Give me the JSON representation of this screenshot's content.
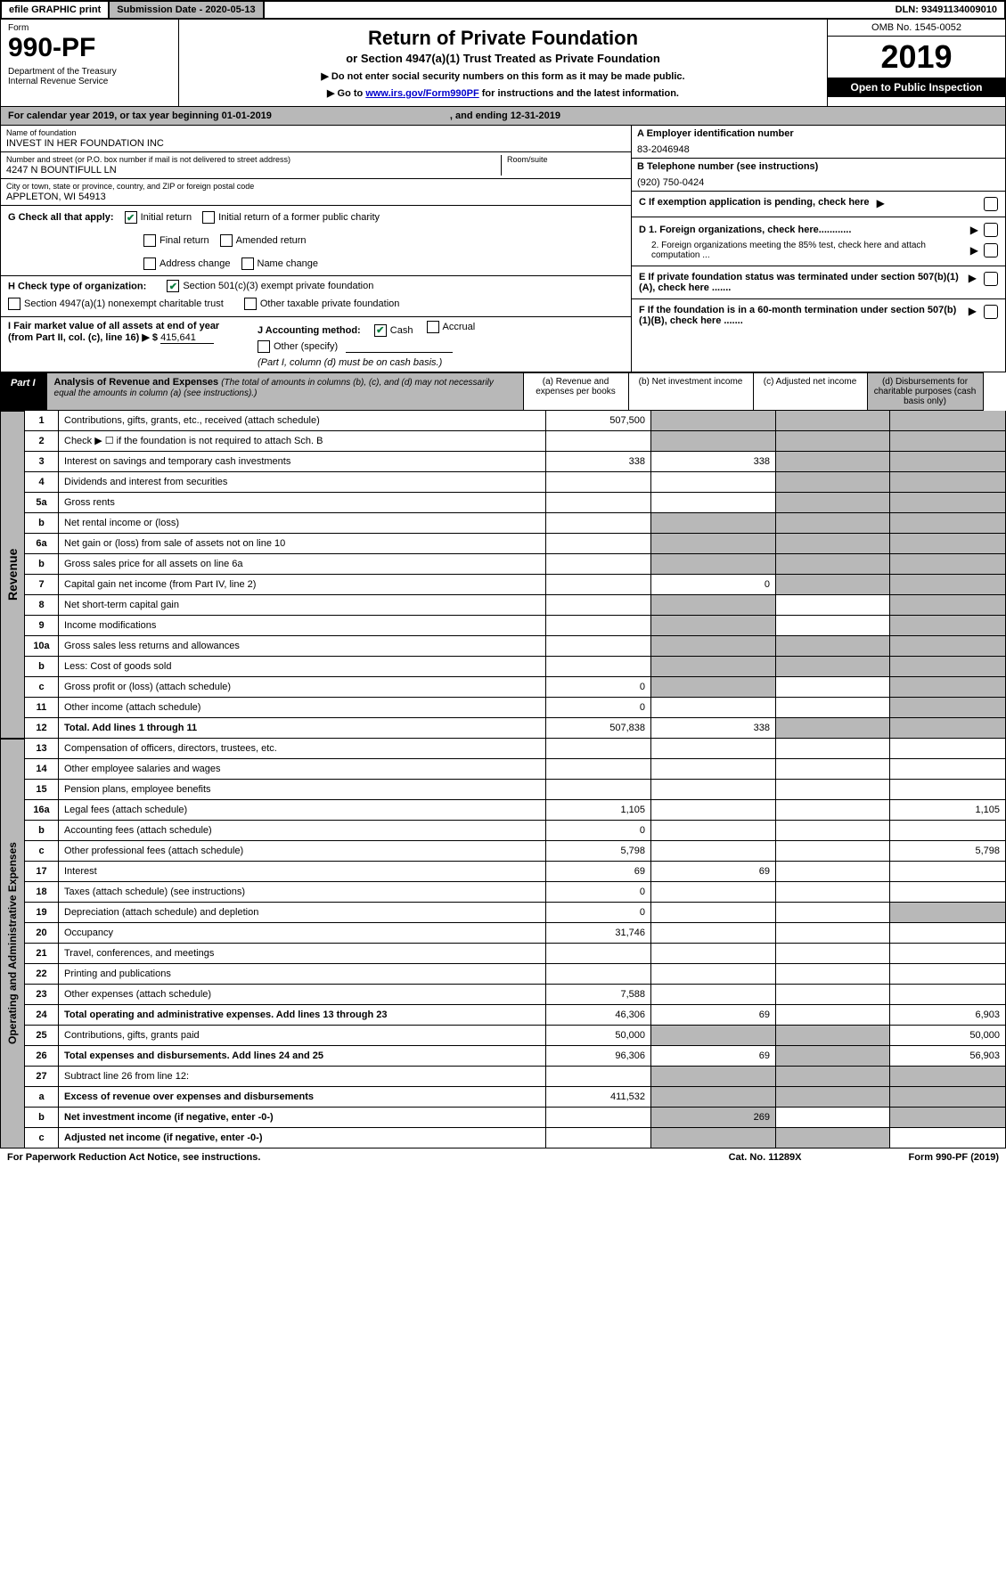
{
  "topbar": {
    "efile": "efile GRAPHIC print",
    "submission": "Submission Date - 2020-05-13",
    "dln": "DLN: 93491134009010"
  },
  "header": {
    "form_label": "Form",
    "form_number": "990-PF",
    "dept": "Department of the Treasury\nInternal Revenue Service",
    "title": "Return of Private Foundation",
    "subtitle": "or Section 4947(a)(1) Trust Treated as Private Foundation",
    "note1": "▶ Do not enter social security numbers on this form as it may be made public.",
    "note2_pre": "▶ Go to ",
    "note2_link": "www.irs.gov/Form990PF",
    "note2_post": " for instructions and the latest information.",
    "omb": "OMB No. 1545-0052",
    "year": "2019",
    "open": "Open to Public Inspection"
  },
  "cal_year": {
    "text": "For calendar year 2019, or tax year beginning 01-01-2019",
    "ending": ", and ending 12-31-2019"
  },
  "name": {
    "label": "Name of foundation",
    "value": "INVEST IN HER FOUNDATION INC"
  },
  "address": {
    "label": "Number and street (or P.O. box number if mail is not delivered to street address)",
    "value": "4247 N BOUNTIFULL LN",
    "room_label": "Room/suite"
  },
  "city": {
    "label": "City or town, state or province, country, and ZIP or foreign postal code",
    "value": "APPLETON, WI  54913"
  },
  "ein": {
    "label": "A Employer identification number",
    "value": "83-2046948"
  },
  "phone": {
    "label": "B Telephone number (see instructions)",
    "value": "(920) 750-0424"
  },
  "c_text": "C If exemption application is pending, check here",
  "d1": "D 1. Foreign organizations, check here............",
  "d2": "2. Foreign organizations meeting the 85% test, check here and attach computation ...",
  "e_text": "E  If private foundation status was terminated under section 507(b)(1)(A), check here .......",
  "f_text": "F  If the foundation is in a 60-month termination under section 507(b)(1)(B), check here .......",
  "g": {
    "label": "G Check all that apply:",
    "initial": "Initial return",
    "initial_former": "Initial return of a former public charity",
    "final": "Final return",
    "amended": "Amended return",
    "address": "Address change",
    "name": "Name change"
  },
  "h": {
    "label": "H Check type of organization:",
    "s501": "Section 501(c)(3) exempt private foundation",
    "s4947": "Section 4947(a)(1) nonexempt charitable trust",
    "other_tax": "Other taxable private foundation"
  },
  "i": {
    "label": "I Fair market value of all assets at end of year (from Part II, col. (c), line 16) ▶ $",
    "value": "415,641"
  },
  "j": {
    "label": "J Accounting method:",
    "cash": "Cash",
    "accrual": "Accrual",
    "other": "Other (specify)",
    "note": "(Part I, column (d) must be on cash basis.)"
  },
  "part1": {
    "tab": "Part I",
    "title": "Analysis of Revenue and Expenses",
    "sub": "(The total of amounts in columns (b), (c), and (d) may not necessarily equal the amounts in column (a) (see instructions).)",
    "cols": {
      "a": "(a)   Revenue and expenses per books",
      "b": "(b)   Net investment income",
      "c": "(c)   Adjusted net income",
      "d": "(d)   Disbursements for charitable purposes (cash basis only)"
    }
  },
  "side_rev": "Revenue",
  "side_exp": "Operating and Administrative Expenses",
  "rows": {
    "r1": {
      "n": "1",
      "d": "Contributions, gifts, grants, etc., received (attach schedule)",
      "a": "507,500"
    },
    "r2": {
      "n": "2",
      "d": "Check ▶ ☐ if the foundation is not required to attach Sch. B"
    },
    "r3": {
      "n": "3",
      "d": "Interest on savings and temporary cash investments",
      "a": "338",
      "b": "338"
    },
    "r4": {
      "n": "4",
      "d": "Dividends and interest from securities"
    },
    "r5a": {
      "n": "5a",
      "d": "Gross rents"
    },
    "r5b": {
      "n": "b",
      "d": "Net rental income or (loss)"
    },
    "r6a": {
      "n": "6a",
      "d": "Net gain or (loss) from sale of assets not on line 10"
    },
    "r6b": {
      "n": "b",
      "d": "Gross sales price for all assets on line 6a"
    },
    "r7": {
      "n": "7",
      "d": "Capital gain net income (from Part IV, line 2)",
      "b": "0"
    },
    "r8": {
      "n": "8",
      "d": "Net short-term capital gain"
    },
    "r9": {
      "n": "9",
      "d": "Income modifications"
    },
    "r10a": {
      "n": "10a",
      "d": "Gross sales less returns and allowances"
    },
    "r10b": {
      "n": "b",
      "d": "Less: Cost of goods sold"
    },
    "r10c": {
      "n": "c",
      "d": "Gross profit or (loss) (attach schedule)",
      "a": "0"
    },
    "r11": {
      "n": "11",
      "d": "Other income (attach schedule)",
      "a": "0"
    },
    "r12": {
      "n": "12",
      "d": "Total. Add lines 1 through 11",
      "a": "507,838",
      "b": "338"
    },
    "r13": {
      "n": "13",
      "d": "Compensation of officers, directors, trustees, etc."
    },
    "r14": {
      "n": "14",
      "d": "Other employee salaries and wages"
    },
    "r15": {
      "n": "15",
      "d": "Pension plans, employee benefits"
    },
    "r16a": {
      "n": "16a",
      "d": "Legal fees (attach schedule)",
      "a": "1,105",
      "dd": "1,105"
    },
    "r16b": {
      "n": "b",
      "d": "Accounting fees (attach schedule)",
      "a": "0"
    },
    "r16c": {
      "n": "c",
      "d": "Other professional fees (attach schedule)",
      "a": "5,798",
      "dd": "5,798"
    },
    "r17": {
      "n": "17",
      "d": "Interest",
      "a": "69",
      "b": "69"
    },
    "r18": {
      "n": "18",
      "d": "Taxes (attach schedule) (see instructions)",
      "a": "0"
    },
    "r19": {
      "n": "19",
      "d": "Depreciation (attach schedule) and depletion",
      "a": "0"
    },
    "r20": {
      "n": "20",
      "d": "Occupancy",
      "a": "31,746"
    },
    "r21": {
      "n": "21",
      "d": "Travel, conferences, and meetings"
    },
    "r22": {
      "n": "22",
      "d": "Printing and publications"
    },
    "r23": {
      "n": "23",
      "d": "Other expenses (attach schedule)",
      "a": "7,588"
    },
    "r24": {
      "n": "24",
      "d": "Total operating and administrative expenses. Add lines 13 through 23",
      "a": "46,306",
      "b": "69",
      "dd": "6,903"
    },
    "r25": {
      "n": "25",
      "d": "Contributions, gifts, grants paid",
      "a": "50,000",
      "dd": "50,000"
    },
    "r26": {
      "n": "26",
      "d": "Total expenses and disbursements. Add lines 24 and 25",
      "a": "96,306",
      "b": "69",
      "dd": "56,903"
    },
    "r27": {
      "n": "27",
      "d": "Subtract line 26 from line 12:"
    },
    "r27a": {
      "n": "a",
      "d": "Excess of revenue over expenses and disbursements",
      "a": "411,532"
    },
    "r27b": {
      "n": "b",
      "d": "Net investment income (if negative, enter -0-)",
      "b": "269"
    },
    "r27c": {
      "n": "c",
      "d": "Adjusted net income (if negative, enter -0-)"
    }
  },
  "footer": {
    "left": "For Paperwork Reduction Act Notice, see instructions.",
    "mid": "Cat. No. 11289X",
    "right": "Form 990-PF (2019)"
  }
}
